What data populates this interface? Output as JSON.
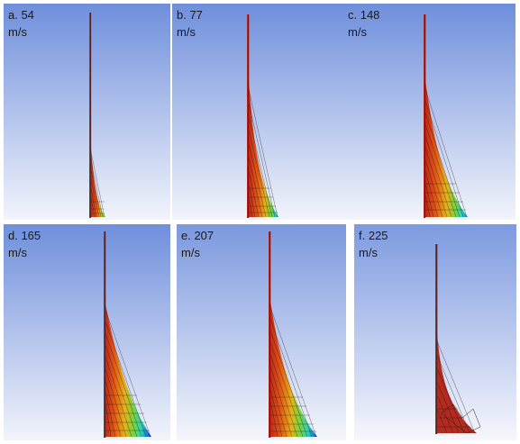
{
  "figure": {
    "panels": [
      {
        "id": "a",
        "speed_label": "a. 54",
        "unit": "m/s"
      },
      {
        "id": "b",
        "speed_label": "b. 77",
        "unit": "m/s"
      },
      {
        "id": "c",
        "speed_label": "c. 148",
        "unit": "m/s"
      },
      {
        "id": "d",
        "speed_label": "d. 165",
        "unit": "m/s"
      },
      {
        "id": "e",
        "speed_label": "e. 207",
        "unit": "m/s"
      },
      {
        "id": "f",
        "speed_label": "f. 225",
        "unit": "m/s"
      }
    ],
    "colors": {
      "background_top": "#6f8fdc",
      "background_bottom": "#f2f4fb",
      "mesh_line": "#111111",
      "stem": "#b0281c",
      "colormap": [
        "#c0281c",
        "#e25a14",
        "#e6b21a",
        "#7bd23c",
        "#2fd3b0",
        "#1e7fe0",
        "#1433b8"
      ]
    }
  }
}
